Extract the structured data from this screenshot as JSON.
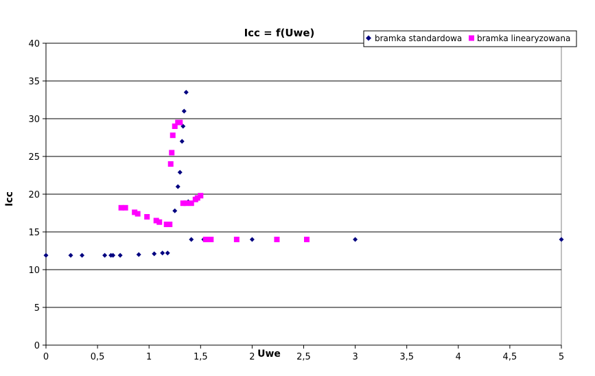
{
  "chart_data": {
    "type": "scatter",
    "title": "Icc = f(Uwe)",
    "xlabel": "Uwe",
    "ylabel": "Icc",
    "xlim": [
      0,
      5
    ],
    "ylim": [
      0,
      40
    ],
    "x_ticks": [
      "0",
      "0,5",
      "1",
      "1,5",
      "2",
      "2,5",
      "3",
      "3,5",
      "4",
      "4,5",
      "5"
    ],
    "y_ticks": [
      "0",
      "5",
      "10",
      "15",
      "20",
      "25",
      "30",
      "35",
      "40"
    ],
    "grid": "horizontal",
    "legend_position": "top-right",
    "series": [
      {
        "name": "bramka standardowa",
        "marker": "diamond",
        "color": "#000080",
        "x": [
          0,
          0.24,
          0.35,
          0.57,
          0.63,
          0.65,
          0.72,
          0.9,
          1.05,
          1.13,
          1.18,
          1.25,
          1.28,
          1.3,
          1.32,
          1.33,
          1.34,
          1.36,
          1.38,
          1.41,
          1.53,
          2.0,
          3.0,
          5.0
        ],
        "y": [
          11.9,
          11.9,
          11.9,
          11.9,
          11.9,
          11.9,
          11.9,
          12.0,
          12.1,
          12.2,
          12.2,
          17.8,
          21.0,
          22.9,
          27.0,
          29.0,
          31.0,
          33.5,
          19.0,
          14.0,
          14.0,
          14.0,
          14.0,
          14.0
        ]
      },
      {
        "name": "bramka linearyzowana",
        "marker": "square",
        "color": "#ff00ff",
        "x": [
          0.73,
          0.77,
          0.86,
          0.89,
          0.98,
          1.07,
          1.1,
          1.17,
          1.2,
          1.21,
          1.22,
          1.23,
          1.25,
          1.28,
          1.3,
          1.33,
          1.36,
          1.41,
          1.45,
          1.47,
          1.5,
          1.55,
          1.6,
          1.85,
          2.24,
          2.53
        ],
        "y": [
          18.2,
          18.2,
          17.6,
          17.4,
          17.0,
          16.5,
          16.3,
          16.0,
          16.0,
          24.0,
          25.5,
          27.8,
          29.0,
          29.5,
          29.5,
          18.8,
          18.8,
          18.8,
          19.3,
          19.5,
          19.8,
          14.0,
          14.0,
          14.0,
          14.0,
          14.0
        ]
      }
    ]
  }
}
